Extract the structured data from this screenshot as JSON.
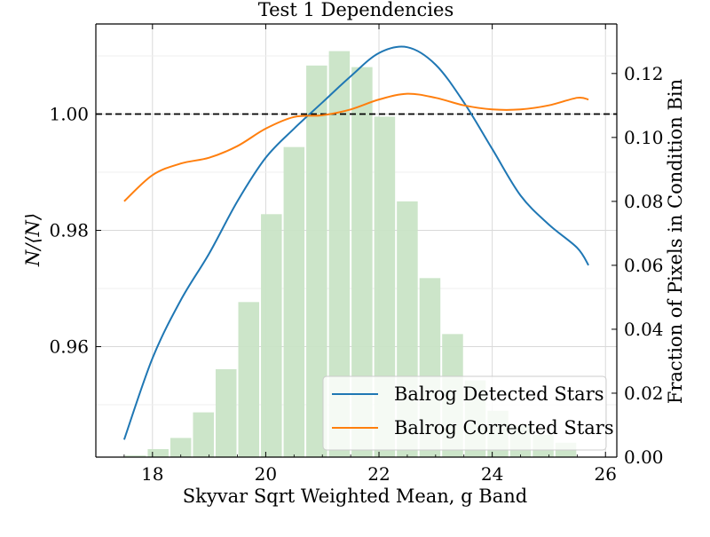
{
  "chart_data": {
    "type": "line",
    "title": "Test 1 Dependencies",
    "xlabel": "Skyvar Sqrt Weighted Mean, g Band",
    "ylabel": "N/⟨N⟩",
    "y2label": "Fraction of Pixels in Condition Bin",
    "xlim": [
      17.0,
      26.2
    ],
    "ylim": [
      0.941,
      1.0155
    ],
    "y2lim": [
      0.0,
      0.1355
    ],
    "x_ticks": [
      18,
      20,
      22,
      24,
      26
    ],
    "y_ticks": [
      0.96,
      0.98,
      1.0
    ],
    "y_tick_labels": [
      "0.96",
      "0.98",
      "1.00"
    ],
    "y2_ticks": [
      0.0,
      0.02,
      0.04,
      0.06,
      0.08,
      0.1,
      0.12
    ],
    "y2_tick_labels": [
      "0.00",
      "0.02",
      "0.04",
      "0.06",
      "0.08",
      "0.10",
      "0.12"
    ],
    "reference_line": {
      "y": 1.0,
      "style": "dashed",
      "color": "#000000"
    },
    "grid": true,
    "legend_position": "lower-right",
    "series": [
      {
        "name": "Balrog Detected Stars",
        "color": "#1f77b4",
        "x": [
          17.5,
          18.0,
          18.5,
          19.0,
          19.5,
          20.0,
          20.5,
          21.0,
          21.5,
          22.0,
          22.5,
          23.0,
          23.5,
          24.0,
          24.5,
          25.0,
          25.5,
          25.7
        ],
        "y": [
          0.944,
          0.958,
          0.968,
          0.976,
          0.985,
          0.9925,
          0.9975,
          1.002,
          1.0065,
          1.0105,
          1.0115,
          1.0085,
          1.002,
          0.994,
          0.986,
          0.981,
          0.977,
          0.974
        ]
      },
      {
        "name": "Balrog Corrected Stars",
        "color": "#ff7f0e",
        "x": [
          17.5,
          18.0,
          18.5,
          19.0,
          19.5,
          20.0,
          20.5,
          21.0,
          21.5,
          22.0,
          22.5,
          23.0,
          23.5,
          24.0,
          24.5,
          25.0,
          25.5,
          25.7
        ],
        "y": [
          0.985,
          0.9895,
          0.9915,
          0.9925,
          0.9945,
          0.9975,
          0.9995,
          0.9998,
          1.0008,
          1.0025,
          1.0035,
          1.0028,
          1.0015,
          1.0008,
          1.0008,
          1.0015,
          1.0028,
          1.0025
        ]
      }
    ],
    "histogram": {
      "color": "#c9e4c6",
      "bin_width": 0.4,
      "bin_centers": [
        17.7,
        18.1,
        18.5,
        18.9,
        19.3,
        19.7,
        20.1,
        20.5,
        20.9,
        21.3,
        21.7,
        22.1,
        22.5,
        22.9,
        23.3,
        23.7,
        24.1,
        24.5,
        24.9,
        25.3
      ],
      "values": [
        0.0005,
        0.0025,
        0.006,
        0.014,
        0.0275,
        0.0485,
        0.076,
        0.097,
        0.1225,
        0.127,
        0.122,
        0.1065,
        0.08,
        0.056,
        0.0385,
        0.024,
        0.0145,
        0.01,
        0.007,
        0.0045
      ]
    }
  }
}
